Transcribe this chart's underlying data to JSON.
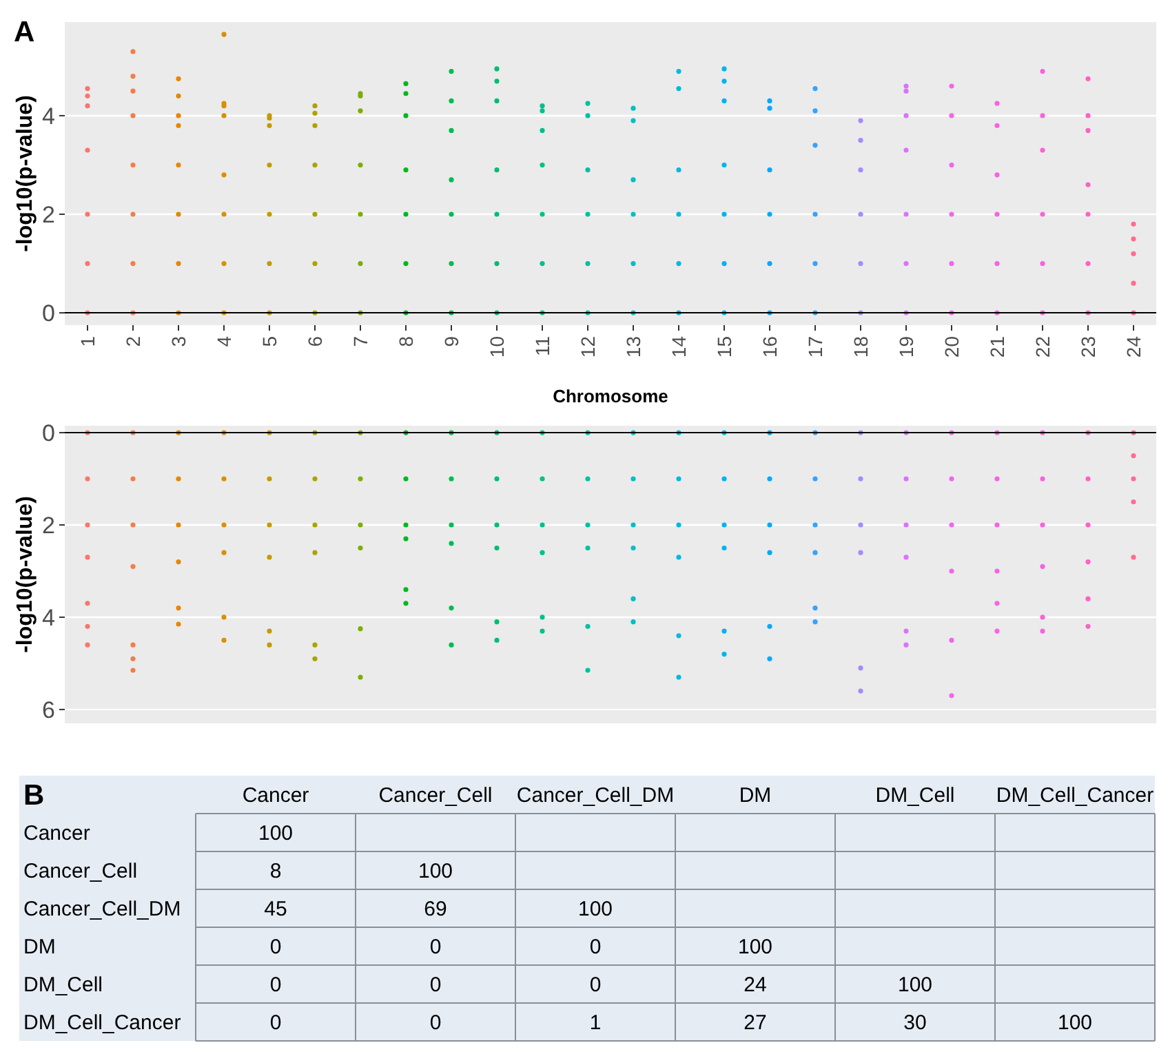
{
  "chart_data": [
    {
      "type": "scatter",
      "title": "A",
      "xlabel": "Chromosome",
      "ylabel": "-log10(p-value)",
      "categories": [
        "1",
        "2",
        "3",
        "4",
        "5",
        "6",
        "7",
        "8",
        "9",
        "10",
        "11",
        "12",
        "13",
        "14",
        "15",
        "16",
        "17",
        "18",
        "19",
        "20",
        "21",
        "22",
        "23",
        "24"
      ],
      "ylim": [
        -0.25,
        5.9
      ],
      "yticks": [
        0,
        2,
        4
      ],
      "grid": "y",
      "marker": "circle",
      "ref_lines": [
        {
          "axis": "y",
          "value": 0,
          "color": "#000000"
        }
      ],
      "series": [
        {
          "color": "#F8766D",
          "x": [
            "1",
            "1",
            "1",
            "1",
            "1",
            "1",
            "1"
          ],
          "values": [
            0,
            1,
            2,
            3.3,
            4.55,
            4.4,
            4.2
          ]
        },
        {
          "color": "#F07E4A",
          "x": [
            "2",
            "2",
            "2",
            "2",
            "2",
            "2",
            "2",
            "2"
          ],
          "values": [
            0,
            1,
            2,
            3.0,
            4.8,
            5.3,
            4.5,
            4.0
          ]
        },
        {
          "color": "#E58700",
          "x": [
            "3",
            "3",
            "3",
            "3",
            "3",
            "3",
            "3",
            "3"
          ],
          "values": [
            0,
            1,
            2,
            3.0,
            4.75,
            4.4,
            4.0,
            3.8
          ]
        },
        {
          "color": "#D89000",
          "x": [
            "4",
            "4",
            "4",
            "4",
            "4",
            "4",
            "4",
            "4"
          ],
          "values": [
            0,
            1,
            2,
            2.8,
            5.65,
            4.25,
            4.2,
            4.0
          ]
        },
        {
          "color": "#C49A00",
          "x": [
            "5",
            "5",
            "5",
            "5",
            "5",
            "5",
            "5"
          ],
          "values": [
            0,
            1,
            2,
            3.0,
            4.0,
            3.95,
            3.8
          ]
        },
        {
          "color": "#AEA200",
          "x": [
            "6",
            "6",
            "6",
            "6",
            "6",
            "6",
            "6"
          ],
          "values": [
            0,
            1,
            2,
            3.0,
            4.05,
            4.2,
            3.8
          ]
        },
        {
          "color": "#7CAE00",
          "x": [
            "7",
            "7",
            "7",
            "7",
            "7",
            "7",
            "7"
          ],
          "values": [
            0,
            1,
            2,
            3.0,
            4.45,
            4.4,
            4.1
          ]
        },
        {
          "color": "#00B81F",
          "x": [
            "8",
            "8",
            "8",
            "8",
            "8",
            "8",
            "8"
          ],
          "values": [
            0,
            1,
            2,
            2.9,
            4.65,
            4.45,
            4.0
          ]
        },
        {
          "color": "#00BB4E",
          "x": [
            "9",
            "9",
            "9",
            "9",
            "9",
            "9",
            "9"
          ],
          "values": [
            0,
            1,
            2,
            2.7,
            4.9,
            4.3,
            3.7
          ]
        },
        {
          "color": "#00BE70",
          "x": [
            "10",
            "10",
            "10",
            "10",
            "10",
            "10",
            "10"
          ],
          "values": [
            0,
            1,
            2,
            2.9,
            4.7,
            4.95,
            4.3
          ]
        },
        {
          "color": "#00C08B",
          "x": [
            "11",
            "11",
            "11",
            "11",
            "11",
            "11",
            "11"
          ],
          "values": [
            0,
            1,
            2,
            3.0,
            4.2,
            4.1,
            3.7
          ]
        },
        {
          "color": "#00C1A3",
          "x": [
            "12",
            "12",
            "12",
            "12",
            "12",
            "12"
          ],
          "values": [
            0,
            1,
            2,
            2.9,
            4.25,
            4.0
          ]
        },
        {
          "color": "#00BFC4",
          "x": [
            "13",
            "13",
            "13",
            "13",
            "13",
            "13"
          ],
          "values": [
            0,
            1,
            2,
            2.7,
            4.15,
            3.9
          ]
        },
        {
          "color": "#00BBDB",
          "x": [
            "14",
            "14",
            "14",
            "14",
            "14",
            "14"
          ],
          "values": [
            0,
            1,
            2,
            2.9,
            4.9,
            4.55
          ]
        },
        {
          "color": "#00B4EF",
          "x": [
            "15",
            "15",
            "15",
            "15",
            "15",
            "15",
            "15"
          ],
          "values": [
            0,
            1,
            2,
            3.0,
            4.95,
            4.7,
            4.3
          ]
        },
        {
          "color": "#00A9FF",
          "x": [
            "16",
            "16",
            "16",
            "16",
            "16",
            "16"
          ],
          "values": [
            0,
            1,
            2,
            2.9,
            4.3,
            4.15
          ]
        },
        {
          "color": "#35A2FF",
          "x": [
            "17",
            "17",
            "17",
            "17",
            "17",
            "17"
          ],
          "values": [
            0,
            1,
            2,
            3.4,
            4.55,
            4.1
          ]
        },
        {
          "color": "#A58AFF",
          "x": [
            "18",
            "18",
            "18",
            "18",
            "18",
            "18"
          ],
          "values": [
            0,
            1,
            2,
            2.9,
            3.9,
            3.5
          ]
        },
        {
          "color": "#DB72FB",
          "x": [
            "19",
            "19",
            "19",
            "19",
            "19",
            "19",
            "19"
          ],
          "values": [
            0,
            1,
            2,
            3.3,
            4.6,
            4.5,
            4.0
          ]
        },
        {
          "color": "#F067EA",
          "x": [
            "20",
            "20",
            "20",
            "20",
            "20",
            "20"
          ],
          "values": [
            0,
            1,
            2,
            3.0,
            4.6,
            4.0
          ]
        },
        {
          "color": "#F564E3",
          "x": [
            "21",
            "21",
            "21",
            "21",
            "21",
            "21"
          ],
          "values": [
            0,
            1,
            2,
            2.8,
            4.25,
            3.8
          ]
        },
        {
          "color": "#FA62DB",
          "x": [
            "22",
            "22",
            "22",
            "22",
            "22",
            "22"
          ],
          "values": [
            0,
            1,
            2,
            3.3,
            4.9,
            4.0
          ]
        },
        {
          "color": "#FF61C3",
          "x": [
            "23",
            "23",
            "23",
            "23",
            "23",
            "23",
            "23"
          ],
          "values": [
            0,
            1,
            2,
            2.6,
            4.75,
            4.0,
            3.7
          ]
        },
        {
          "color": "#FF6C91",
          "x": [
            "24",
            "24",
            "24",
            "24",
            "24"
          ],
          "values": [
            0,
            0.6,
            1.2,
            1.8,
            1.5
          ]
        }
      ]
    },
    {
      "type": "scatter",
      "ylabel": "-log10(p-value)",
      "categories": [
        "1",
        "2",
        "3",
        "4",
        "5",
        "6",
        "7",
        "8",
        "9",
        "10",
        "11",
        "12",
        "13",
        "14",
        "15",
        "16",
        "17",
        "18",
        "19",
        "20",
        "21",
        "22",
        "23",
        "24"
      ],
      "ylim": [
        6.3,
        -0.15
      ],
      "yticks": [
        0,
        2,
        4,
        6
      ],
      "grid": "y",
      "marker": "circle",
      "tick_labels": "y",
      "ref_lines": [
        {
          "axis": "y",
          "value": 0,
          "color": "#000000"
        }
      ],
      "series": [
        {
          "color": "#F8766D",
          "x": [
            "1",
            "1",
            "1",
            "1",
            "1",
            "1",
            "1"
          ],
          "values": [
            0,
            1,
            2,
            2.7,
            4.6,
            4.2,
            3.7
          ]
        },
        {
          "color": "#F07E4A",
          "x": [
            "2",
            "2",
            "2",
            "2",
            "2",
            "2",
            "2"
          ],
          "values": [
            0,
            1,
            2,
            2.9,
            5.15,
            4.9,
            4.6
          ]
        },
        {
          "color": "#E58700",
          "x": [
            "3",
            "3",
            "3",
            "3",
            "3",
            "3"
          ],
          "values": [
            0,
            1,
            2,
            2.8,
            4.15,
            3.8
          ]
        },
        {
          "color": "#D89000",
          "x": [
            "4",
            "4",
            "4",
            "4",
            "4",
            "4"
          ],
          "values": [
            0,
            1,
            2,
            2.6,
            4.5,
            4.0
          ]
        },
        {
          "color": "#C49A00",
          "x": [
            "5",
            "5",
            "5",
            "5",
            "5",
            "5"
          ],
          "values": [
            0,
            1,
            2,
            2.7,
            4.6,
            4.3
          ]
        },
        {
          "color": "#AEA200",
          "x": [
            "6",
            "6",
            "6",
            "6",
            "6",
            "6"
          ],
          "values": [
            0,
            1,
            2,
            2.6,
            4.9,
            4.6
          ]
        },
        {
          "color": "#7CAE00",
          "x": [
            "7",
            "7",
            "7",
            "7",
            "7",
            "7"
          ],
          "values": [
            0,
            1,
            2,
            2.5,
            5.3,
            4.25
          ]
        },
        {
          "color": "#00B81F",
          "x": [
            "8",
            "8",
            "8",
            "8",
            "8",
            "8"
          ],
          "values": [
            0,
            1,
            2,
            2.3,
            3.7,
            3.4
          ]
        },
        {
          "color": "#00BB4E",
          "x": [
            "9",
            "9",
            "9",
            "9",
            "9",
            "9"
          ],
          "values": [
            0,
            1,
            2,
            2.4,
            4.6,
            3.8
          ]
        },
        {
          "color": "#00BE70",
          "x": [
            "10",
            "10",
            "10",
            "10",
            "10",
            "10"
          ],
          "values": [
            0,
            1,
            2,
            2.5,
            4.5,
            4.1
          ]
        },
        {
          "color": "#00C08B",
          "x": [
            "11",
            "11",
            "11",
            "11",
            "11",
            "11"
          ],
          "values": [
            0,
            1,
            2,
            2.6,
            4.3,
            4.0
          ]
        },
        {
          "color": "#00C1A3",
          "x": [
            "12",
            "12",
            "12",
            "12",
            "12",
            "12"
          ],
          "values": [
            0,
            1,
            2,
            2.5,
            5.15,
            4.2
          ]
        },
        {
          "color": "#00BFC4",
          "x": [
            "13",
            "13",
            "13",
            "13",
            "13",
            "13"
          ],
          "values": [
            0,
            1,
            2,
            2.5,
            4.1,
            3.6
          ]
        },
        {
          "color": "#00BBDB",
          "x": [
            "14",
            "14",
            "14",
            "14",
            "14",
            "14"
          ],
          "values": [
            0,
            1,
            2,
            2.7,
            5.3,
            4.4
          ]
        },
        {
          "color": "#00B4EF",
          "x": [
            "15",
            "15",
            "15",
            "15",
            "15",
            "15"
          ],
          "values": [
            0,
            1,
            2,
            2.5,
            4.8,
            4.3
          ]
        },
        {
          "color": "#00A9FF",
          "x": [
            "16",
            "16",
            "16",
            "16",
            "16",
            "16"
          ],
          "values": [
            0,
            1,
            2,
            2.6,
            4.9,
            4.2
          ]
        },
        {
          "color": "#35A2FF",
          "x": [
            "17",
            "17",
            "17",
            "17",
            "17",
            "17"
          ],
          "values": [
            0,
            1,
            2,
            2.6,
            4.1,
            3.8
          ]
        },
        {
          "color": "#A58AFF",
          "x": [
            "18",
            "18",
            "18",
            "18",
            "18",
            "18"
          ],
          "values": [
            0,
            1,
            2,
            2.6,
            5.6,
            5.1
          ]
        },
        {
          "color": "#DB72FB",
          "x": [
            "19",
            "19",
            "19",
            "19",
            "19",
            "19"
          ],
          "values": [
            0,
            1,
            2,
            2.7,
            4.6,
            4.3
          ]
        },
        {
          "color": "#F067EA",
          "x": [
            "20",
            "20",
            "20",
            "20",
            "20",
            "20"
          ],
          "values": [
            0,
            1,
            2,
            3.0,
            5.7,
            4.5
          ]
        },
        {
          "color": "#F564E3",
          "x": [
            "21",
            "21",
            "21",
            "21",
            "21",
            "21"
          ],
          "values": [
            0,
            1,
            2,
            3.0,
            4.3,
            3.7
          ]
        },
        {
          "color": "#FA62DB",
          "x": [
            "22",
            "22",
            "22",
            "22",
            "22",
            "22"
          ],
          "values": [
            0,
            1,
            2,
            2.9,
            4.3,
            4.0
          ]
        },
        {
          "color": "#FF61C3",
          "x": [
            "23",
            "23",
            "23",
            "23",
            "23",
            "23"
          ],
          "values": [
            0,
            1,
            2,
            2.8,
            4.2,
            3.6
          ]
        },
        {
          "color": "#FF6C91",
          "x": [
            "24",
            "24",
            "24",
            "24",
            "24"
          ],
          "values": [
            0,
            0.5,
            1.0,
            2.7,
            1.5
          ]
        }
      ]
    },
    {
      "type": "heatmap",
      "title": "B",
      "color": "#e6ecf4",
      "data_labels": true,
      "categories": [
        "Cancer",
        "Cancer_Cell",
        "Cancer_Cell_DM",
        "DM",
        "DM_Cell",
        "DM_Cell_Cancer"
      ],
      "y_categories": [
        "Cancer",
        "Cancer_Cell",
        "Cancer_Cell_DM",
        "DM",
        "DM_Cell",
        "DM_Cell_Cancer"
      ],
      "cells": [
        [
          100,
          null,
          null,
          null,
          null,
          null
        ],
        [
          8,
          100,
          null,
          null,
          null,
          null
        ],
        [
          45,
          69,
          100,
          null,
          null,
          null
        ],
        [
          0,
          0,
          0,
          100,
          null,
          null
        ],
        [
          0,
          0,
          0,
          24,
          100,
          null
        ],
        [
          0,
          0,
          1,
          27,
          30,
          100
        ]
      ]
    }
  ]
}
